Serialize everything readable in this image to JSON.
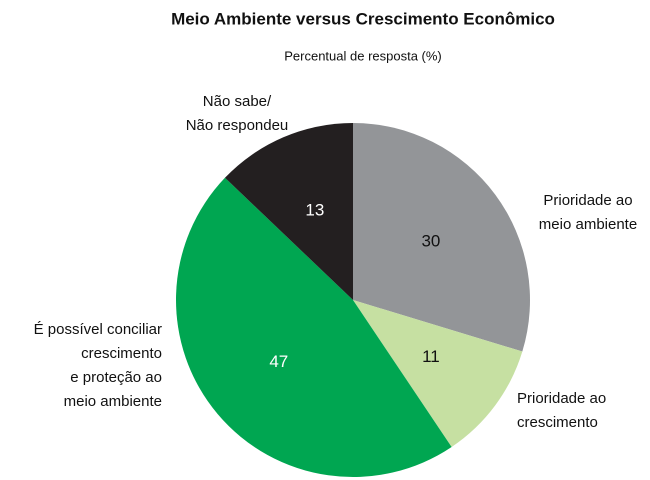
{
  "chart_data": {
    "type": "pie",
    "title": "Meio Ambiente versus Crescimento Econômico",
    "subtitle": "Percentual de resposta (%)",
    "categories": [
      "Prioridade ao\nmeio ambiente",
      "Prioridade ao\ncrescimento",
      "É possível conciliar\ncrescimento\ne proteção ao\nmeio ambiente",
      "Não sabe/\nNão respondeu"
    ],
    "values": [
      30,
      11,
      47,
      13
    ],
    "colors": [
      "#939598",
      "#c6e0a2",
      "#00a651",
      "#231f20"
    ]
  }
}
